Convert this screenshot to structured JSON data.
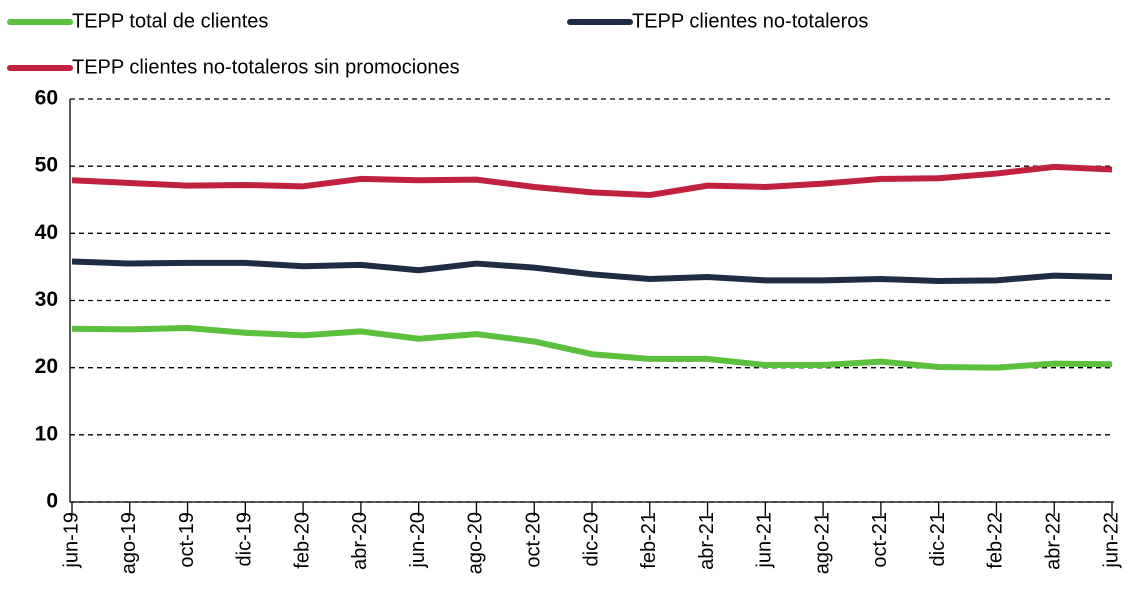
{
  "chart_data": {
    "type": "line",
    "categories": [
      "jun-19",
      "ago-19",
      "oct-19",
      "dic-19",
      "feb-20",
      "abr-20",
      "jun-20",
      "ago-20",
      "oct-20",
      "dic-20",
      "feb-21",
      "abr-21",
      "jun-21",
      "ago-21",
      "oct-21",
      "dic-21",
      "feb-22",
      "abr-22",
      "jun-22"
    ],
    "series": [
      {
        "name": "TEPP total de clientes",
        "color": "#5cbf3e",
        "values": [
          25.8,
          25.7,
          25.9,
          25.2,
          24.8,
          25.4,
          24.3,
          25.0,
          23.9,
          22.0,
          21.3,
          21.3,
          20.4,
          20.4,
          20.9,
          20.1,
          20.0,
          20.6,
          20.5
        ]
      },
      {
        "name": "TEPP clientes no-totaleros",
        "color": "#1f2c45",
        "values": [
          35.8,
          35.5,
          35.6,
          35.6,
          35.1,
          35.3,
          34.5,
          35.5,
          34.9,
          33.9,
          33.2,
          33.5,
          33.0,
          33.0,
          33.2,
          32.9,
          33.0,
          33.7,
          33.5
        ]
      },
      {
        "name": "TEPP clientes no-totaleros sin promociones",
        "color": "#c0213f",
        "values": [
          47.9,
          47.5,
          47.1,
          47.2,
          47.0,
          48.1,
          47.9,
          48.0,
          46.9,
          46.1,
          45.7,
          47.1,
          46.9,
          47.4,
          48.1,
          48.2,
          48.9,
          49.9,
          49.5
        ]
      }
    ],
    "ylim": [
      0,
      60
    ],
    "yticks": [
      0,
      10,
      20,
      30,
      40,
      50,
      60
    ],
    "grid": true,
    "legend": "top"
  }
}
